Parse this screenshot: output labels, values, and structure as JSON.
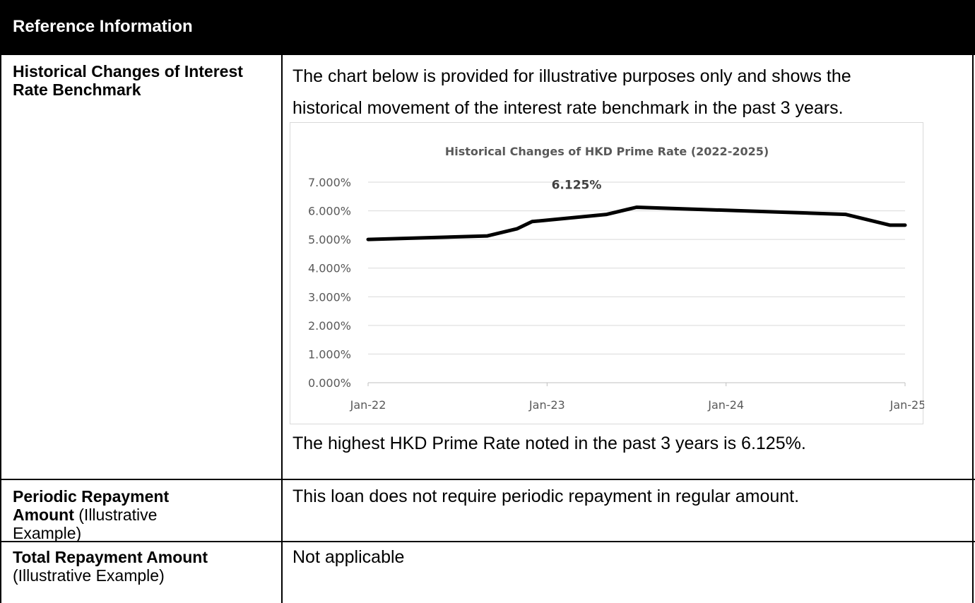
{
  "header": {
    "title": "Reference Information"
  },
  "rows": [
    {
      "label_bold": "Historical Changes of Interest Rate Benchmark",
      "label_normal": "",
      "intro": [
        "The chart below is provided for illustrative purposes only and shows the",
        "historical movement of the interest rate benchmark in the past 3 years."
      ],
      "note": "The highest HKD Prime Rate noted in the past 3 years is 6.125%."
    },
    {
      "label_bold_1": "Periodic Repayment",
      "label_bold_2": "Amount",
      "label_normal_2": " (Illustrative",
      "label_normal_3": "Example)",
      "text": "This loan does not require periodic repayment in regular amount."
    },
    {
      "label_bold": "Total Repayment Amount",
      "label_normal": "(Illustrative Example)",
      "text": "Not applicable"
    }
  ],
  "chart_data": {
    "type": "line",
    "title": "Historical Changes of HKD Prime Rate (2022-2025)",
    "xlabel": "",
    "ylabel": "",
    "y_ticks": [
      "0.000%",
      "1.000%",
      "2.000%",
      "3.000%",
      "4.000%",
      "5.000%",
      "6.000%",
      "7.000%"
    ],
    "ylim": [
      0,
      7
    ],
    "x_ticks": [
      "Jan-22",
      "Jan-23",
      "Jan-24",
      "Jan-25"
    ],
    "xlim": [
      "2022-01",
      "2025-01"
    ],
    "grid": true,
    "series": [
      {
        "color": "#000000",
        "points": [
          {
            "x": "2022-01",
            "y": 5.0
          },
          {
            "x": "2022-09",
            "y": 5.125
          },
          {
            "x": "2022-11",
            "y": 5.375
          },
          {
            "x": "2022-12",
            "y": 5.625
          },
          {
            "x": "2023-05",
            "y": 5.875
          },
          {
            "x": "2023-07",
            "y": 6.125
          },
          {
            "x": "2024-09",
            "y": 5.875
          },
          {
            "x": "2024-12",
            "y": 5.5
          },
          {
            "x": "2025-01",
            "y": 5.5
          }
        ]
      }
    ],
    "annotation": {
      "x": "2023-07",
      "y": 6.125,
      "text": "6.125%"
    }
  }
}
